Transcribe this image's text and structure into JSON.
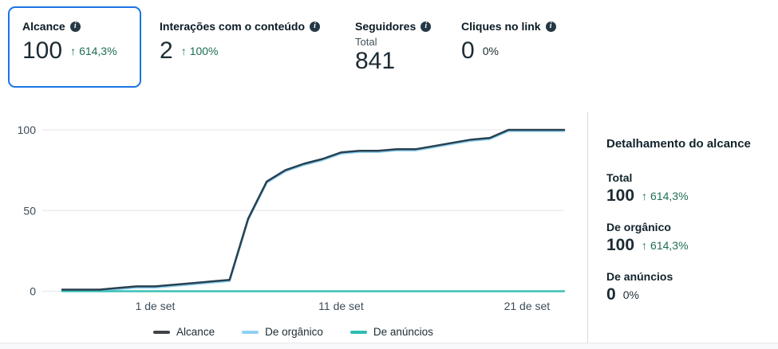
{
  "cards": [
    {
      "label": "Alcance",
      "value": "100",
      "change": "614,3%",
      "direction": "up",
      "selected": true
    },
    {
      "label": "Interações com o conteúdo",
      "value": "2",
      "change": "100%",
      "direction": "up",
      "selected": false
    },
    {
      "label": "Seguidores",
      "sublabel": "Total",
      "value": "841",
      "selected": false
    },
    {
      "label": "Cliques no link",
      "value": "0",
      "change": "0%",
      "direction": "none",
      "selected": false
    }
  ],
  "icons": {
    "arrow_up": "↑",
    "info": "i"
  },
  "chart_data": {
    "type": "line",
    "x": [
      "27 ago",
      "28 ago",
      "29 ago",
      "30 ago",
      "31 ago",
      "1 set",
      "2 set",
      "3 set",
      "4 set",
      "5 set",
      "6 set",
      "7 set",
      "8 set",
      "9 set",
      "10 set",
      "11 set",
      "12 set",
      "13 set",
      "14 set",
      "15 set",
      "16 set",
      "17 set",
      "18 set",
      "19 set",
      "20 set",
      "21 set",
      "22 set",
      "23 set"
    ],
    "series": [
      {
        "name": "Alcance",
        "color": "#28404f",
        "values": [
          1,
          1,
          1,
          2,
          3,
          3,
          4,
          5,
          6,
          7,
          45,
          68,
          75,
          79,
          82,
          86,
          87,
          87,
          88,
          88,
          90,
          92,
          94,
          95,
          100,
          100,
          100,
          100
        ]
      },
      {
        "name": "De orgânico",
        "color": "#8fd1f5",
        "values": [
          1,
          1,
          1,
          2,
          3,
          3,
          4,
          5,
          6,
          7,
          45,
          68,
          75,
          79,
          82,
          86,
          87,
          87,
          88,
          88,
          90,
          92,
          94,
          95,
          100,
          100,
          100,
          100
        ]
      },
      {
        "name": "De anúncios",
        "color": "#3cc0b5",
        "values": [
          0,
          0,
          0,
          0,
          0,
          0,
          0,
          0,
          0,
          0,
          0,
          0,
          0,
          0,
          0,
          0,
          0,
          0,
          0,
          0,
          0,
          0,
          0,
          0,
          0,
          0,
          0,
          0
        ]
      }
    ],
    "y_ticks": [
      0,
      50,
      100
    ],
    "x_ticks": [
      {
        "index": 5,
        "label": "1 de set"
      },
      {
        "index": 15,
        "label": "11 de set"
      },
      {
        "index": 25,
        "label": "21 de set"
      }
    ],
    "ylim": [
      0,
      100
    ],
    "grid": "horizontal",
    "legend_position": "bottom"
  },
  "legend": [
    {
      "label": "Alcance",
      "color": "#3f4449"
    },
    {
      "label": "De orgânico",
      "color": "#8fd1f5"
    },
    {
      "label": "De anúncios",
      "color": "#2ebdb3"
    }
  ],
  "detail_panel": {
    "heading": "Detalhamento do alcance",
    "items": [
      {
        "label": "Total",
        "value": "100",
        "change": "614,3%",
        "direction": "up"
      },
      {
        "label": "De orgânico",
        "value": "100",
        "change": "614,3%",
        "direction": "up"
      },
      {
        "label": "De anúncios",
        "value": "0",
        "change": "0%",
        "direction": "none"
      }
    ]
  },
  "colors": {
    "selected_border": "#1b74e4",
    "positive": "#1e6e52",
    "grid": "#e4e6eb",
    "alcance_line": "#28404f",
    "organico_line": "#8fd1f5",
    "anuncios_line": "#3cc0b5"
  }
}
